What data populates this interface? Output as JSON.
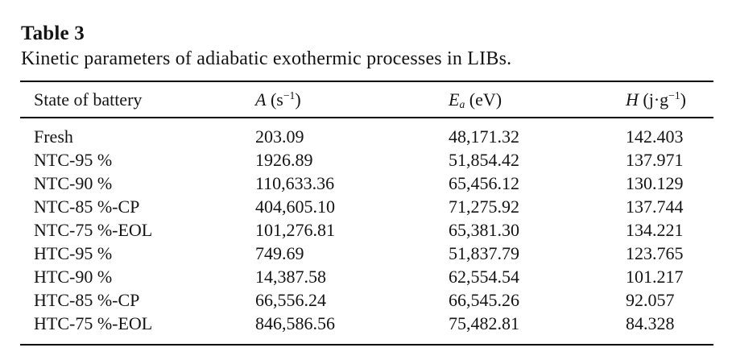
{
  "page": {
    "background": "#ffffff",
    "text_color": "#141414",
    "rule_color": "#000000"
  },
  "table_label": "Table 3",
  "caption": "Kinetic parameters of adiabatic exothermic processes in LIBs.",
  "table": {
    "headers": [
      {
        "text": "State of battery"
      },
      {
        "symbol": "A",
        "unit_pre": " (s",
        "unit_sup": "−1",
        "unit_post": ")"
      },
      {
        "symbol": "E",
        "symbol_sub": "a",
        "unit_pre": " (eV)"
      },
      {
        "symbol": "H",
        "unit_pre": " (j·g",
        "unit_sup": "−1",
        "unit_post": ")"
      }
    ],
    "rows": [
      {
        "state": "Fresh",
        "a": "203.09",
        "ea": "48,171.32",
        "h": "142.403"
      },
      {
        "state": "NTC-95 %",
        "a": "1926.89",
        "ea": "51,854.42",
        "h": "137.971"
      },
      {
        "state": "NTC-90 %",
        "a": "110,633.36",
        "ea": "65,456.12",
        "h": "130.129"
      },
      {
        "state": "NTC-85 %-CP",
        "a": "404,605.10",
        "ea": "71,275.92",
        "h": "137.744"
      },
      {
        "state": "NTC-75 %-EOL",
        "a": "101,276.81",
        "ea": "65,381.30",
        "h": "134.221"
      },
      {
        "state": "HTC-95 %",
        "a": "749.69",
        "ea": "51,837.79",
        "h": "123.765"
      },
      {
        "state": "HTC-90 %",
        "a": "14,387.58",
        "ea": "62,554.54",
        "h": "101.217"
      },
      {
        "state": "HTC-85 %-CP",
        "a": "66,556.24",
        "ea": "66,545.26",
        "h": "92.057"
      },
      {
        "state": "HTC-75 %-EOL",
        "a": "846,586.56",
        "ea": "75,482.81",
        "h": "84.328"
      }
    ]
  }
}
